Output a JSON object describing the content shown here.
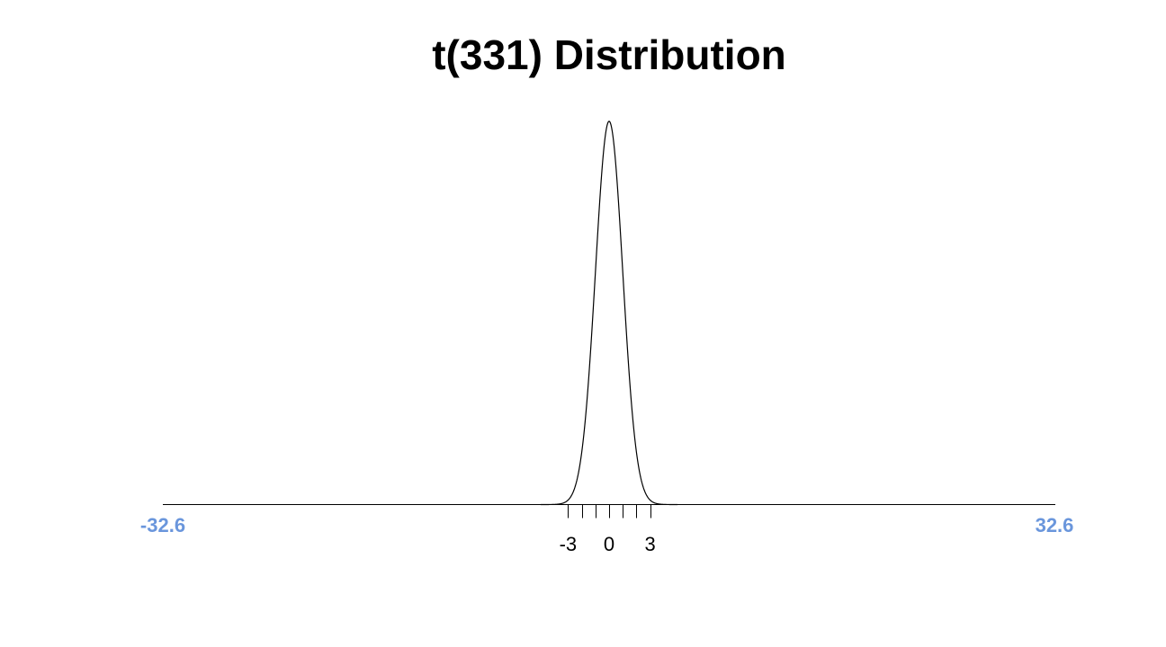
{
  "chart_data": {
    "type": "line",
    "title": "t(331) Distribution",
    "distribution": "t",
    "degrees_of_freedom": 331,
    "xlim": [
      -32.6,
      32.6
    ],
    "bound_labels": [
      "-32.6",
      "32.6"
    ],
    "minor_ticks": [
      -3,
      -2,
      -1,
      0,
      1,
      2,
      3
    ],
    "tick_labels": [
      {
        "value": -3,
        "label": "-3"
      },
      {
        "value": 0,
        "label": "0"
      },
      {
        "value": 3,
        "label": "3"
      }
    ],
    "colors": {
      "curve": "#000000",
      "axis": "#000000",
      "bound_labels": "#6a96dc"
    }
  }
}
